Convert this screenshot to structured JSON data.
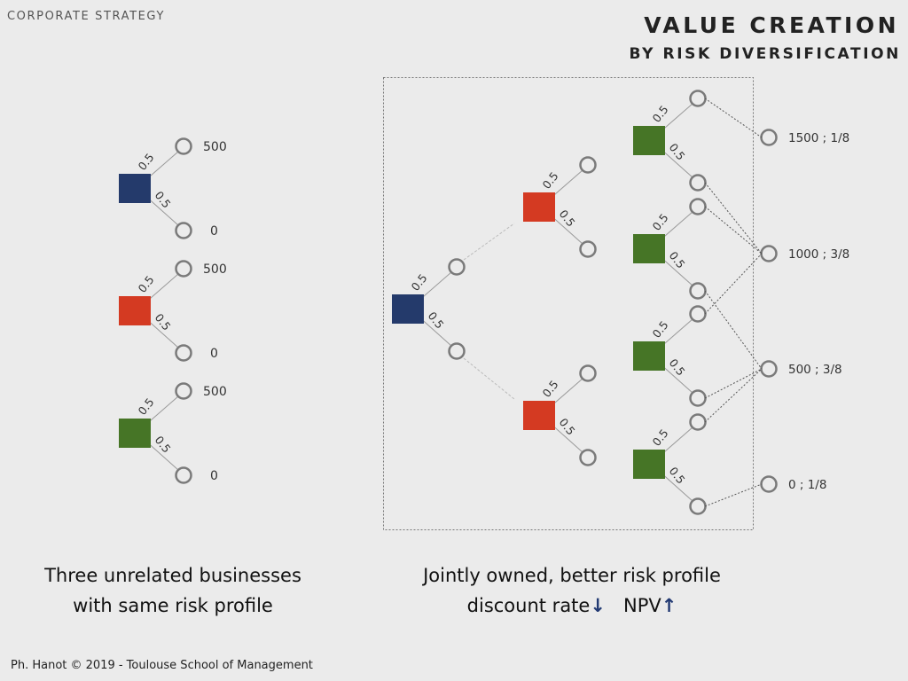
{
  "header": {
    "section": "CORPORATE STRATEGY",
    "title": "VALUE CREATION",
    "subtitle": "BY RISK DIVERSIFICATION"
  },
  "colors": {
    "navy": "#243a6b",
    "red": "#d43a22",
    "green": "#467526",
    "node_outline": "#7a7a7a",
    "branch_line": "#9a9a9a",
    "arrow": "#223a73"
  },
  "probability_label": "0.5",
  "left_trees": [
    {
      "color": "navy",
      "up_payoff": "500",
      "down_payoff": "0"
    },
    {
      "color": "red",
      "up_payoff": "500",
      "down_payoff": "0"
    },
    {
      "color": "green",
      "up_payoff": "500",
      "down_payoff": "0"
    }
  ],
  "outcomes": [
    "1500 ; 1/8",
    "1000 ; 3/8",
    "500 ; 3/8",
    "0 ; 1/8"
  ],
  "captions": {
    "left_line1": "Three unrelated businesses",
    "left_line2": "with same risk profile",
    "right_line1": "Jointly owned, better risk profile",
    "right_line2a": "discount rate",
    "right_arrow_down": "↓",
    "right_line2b": "NPV",
    "right_arrow_up": "↑"
  },
  "footer": "Ph. Hanot © 2019  -  Toulouse School of Management"
}
